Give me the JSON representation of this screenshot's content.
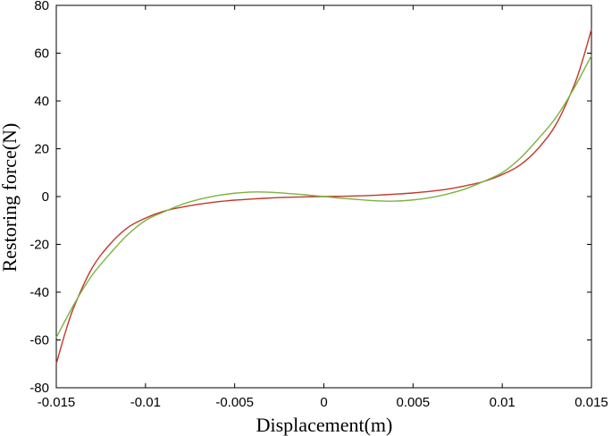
{
  "chart_data": {
    "type": "line",
    "title": "",
    "xlabel": "Displacement(m)",
    "ylabel": "Restoring force(N)",
    "xlim": [
      -0.015,
      0.015
    ],
    "ylim": [
      -80,
      80
    ],
    "x_ticks": [
      -0.015,
      -0.01,
      -0.005,
      0,
      0.005,
      0.01,
      0.015
    ],
    "x_tick_labels": [
      "-0.015",
      "-0.01",
      "-0.005",
      "0",
      "0.005",
      "0.01",
      "0.015"
    ],
    "y_ticks": [
      -80,
      -60,
      -40,
      -20,
      0,
      20,
      40,
      60,
      80
    ],
    "y_tick_labels": [
      "-80",
      "-60",
      "-40",
      "-20",
      "0",
      "20",
      "40",
      "60",
      "80"
    ],
    "grid": false,
    "legend": "none",
    "series": [
      {
        "color": "#c0392b",
        "x": [
          -0.015,
          -0.0145,
          -0.014,
          -0.013,
          -0.012,
          -0.011,
          -0.01,
          -0.009,
          -0.008,
          -0.007,
          -0.006,
          -0.005,
          -0.004,
          -0.003,
          -0.002,
          -0.001,
          0,
          0.001,
          0.002,
          0.003,
          0.004,
          0.005,
          0.006,
          0.007,
          0.008,
          0.009,
          0.01,
          0.011,
          0.012,
          0.013,
          0.014,
          0.0145,
          0.015
        ],
        "y": [
          -70,
          -57,
          -46,
          -30,
          -20,
          -13,
          -9,
          -6.2,
          -4.5,
          -3.2,
          -2.2,
          -1.5,
          -1.0,
          -0.6,
          -0.3,
          -0.1,
          0,
          0.1,
          0.3,
          0.6,
          1.0,
          1.5,
          2.2,
          3.2,
          4.6,
          6.4,
          9.2,
          13.2,
          20,
          30,
          46,
          57,
          70
        ]
      },
      {
        "color": "#7cb342",
        "x": [
          -0.015,
          -0.014,
          -0.013,
          -0.012,
          -0.011,
          -0.01,
          -0.009,
          -0.008,
          -0.007,
          -0.006,
          -0.005,
          -0.004,
          -0.003,
          -0.002,
          -0.001,
          0,
          0.001,
          0.002,
          0.003,
          0.004,
          0.005,
          0.006,
          0.007,
          0.008,
          0.009,
          0.01,
          0.011,
          0.012,
          0.013,
          0.014,
          0.015
        ],
        "y": [
          -59,
          -45,
          -33,
          -24,
          -16,
          -10,
          -6.5,
          -3.4,
          -1.2,
          0.4,
          1.4,
          1.9,
          1.8,
          1.3,
          0.7,
          0,
          -0.7,
          -1.3,
          -1.8,
          -1.9,
          -1.4,
          -0.4,
          1.2,
          3.4,
          6.5,
          10,
          16,
          24,
          33,
          45,
          59
        ]
      }
    ]
  }
}
